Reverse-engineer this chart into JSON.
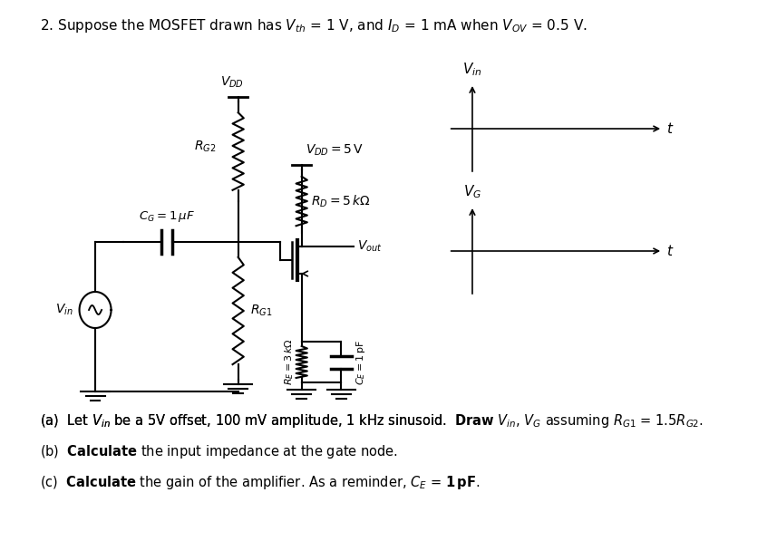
{
  "bg_color": "#ffffff",
  "figsize": [
    8.57,
    5.97
  ],
  "dpi": 100,
  "title": "2. Suppose the MOSFET drawn has $V_{th}$ = 1 V, and $I_D$ = 1 mA when $V_{OV}$ = 0.5 V.",
  "part_a": "(a)  Let $V_{in}$ be a 5V offset, 100 mV amplitude, 1 kHz sinusoid.  Draw $V_{in}$, $V_G$ assuming $R_{G1}$ = 1.5$R_{G2}$.",
  "part_b_pre": "(b)  ",
  "part_b_bold": "Calculate",
  "part_b_rest": " the input impedance at the gate node.",
  "part_c_pre": "(c)  ",
  "part_c_bold": "Calculate",
  "part_c_rest": " the gain of the amplifier. As a reminder, $C_E$ = 1 pF."
}
